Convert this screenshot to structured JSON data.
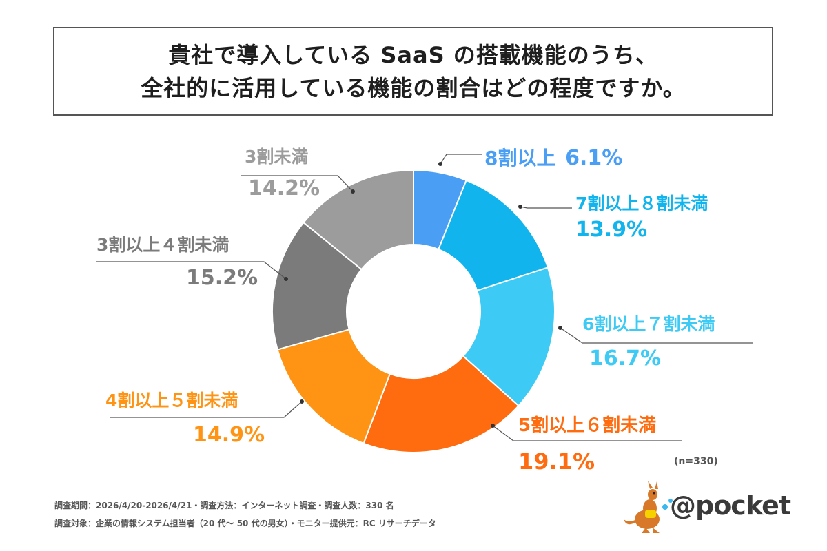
{
  "title": {
    "line1": "貴社で導入している SaaS の搭載機能のうち、",
    "line2": "全社的に活用している機能の割合はどの程度ですか。"
  },
  "chart_data": {
    "type": "donut",
    "slices": [
      {
        "label": "8割以上",
        "value": 6.1,
        "value_text": "6.1%",
        "color": "#4a9ff5"
      },
      {
        "label": "7割以上８割未満",
        "value": 13.9,
        "value_text": "13.9%",
        "color": "#12b4ee"
      },
      {
        "label": "6割以上７割未満",
        "value": 16.7,
        "value_text": "16.7%",
        "color": "#3dcbf5"
      },
      {
        "label": "5割以上６割未満",
        "value": 19.1,
        "value_text": "19.1%",
        "color": "#ff6b0f"
      },
      {
        "label": "4割以上５割未満",
        "value": 14.9,
        "value_text": "14.9%",
        "color": "#ff9414"
      },
      {
        "label": "3割以上４割未満",
        "value": 15.2,
        "value_text": "15.2%",
        "color": "#7b7b7b"
      },
      {
        "label": "3割未満",
        "value": 14.2,
        "value_text": "14.2%",
        "color": "#9c9c9c"
      }
    ],
    "sample_size": "(n=330)"
  },
  "footer": {
    "line1": "調査期間：2026/4/20-2026/4/21・調査方法：インターネット調査・調査人数：330 名",
    "line2": "調査対象：企業の情報システム担当者（20 代～ 50 代の男女）・モニター提供元：RC リサーチデータ"
  },
  "logo": {
    "text": "@pocket"
  }
}
